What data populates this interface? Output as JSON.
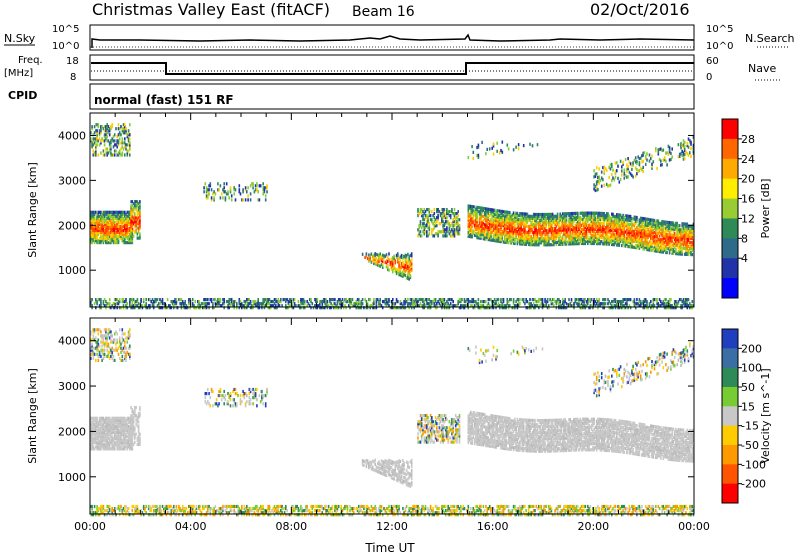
{
  "header": {
    "station": "Christmas Valley East (fitACF)",
    "beam": "Beam 16",
    "date": "02/Oct/2016"
  },
  "strip_labels": {
    "nsky": "N.Sky",
    "nsky_ticks": [
      "10^5",
      "10^0"
    ],
    "nsearch": "N.Search",
    "nsearch_ticks": [
      "10^5",
      "10^0"
    ],
    "freq": "Freq.",
    "freq_unit": "[MHz]",
    "freq_ticks": [
      "18",
      "8"
    ],
    "nave": "Nave",
    "nave_ticks": [
      "60",
      "0"
    ],
    "cpid": "CPID",
    "cpid_value": "normal (fast) 151 RF"
  },
  "chart_data": [
    {
      "type": "heatmap",
      "name": "power-panel",
      "ylabel": "Slant Range [km]",
      "yticks": [
        1000,
        2000,
        3000,
        4000
      ],
      "ylim": [
        180,
        4500
      ],
      "xlim": [
        0,
        24
      ],
      "colorbar_label": "Power [dB]",
      "colorbar_ticks": [
        "28",
        "24",
        "20",
        "16",
        "12",
        "8",
        "4"
      ],
      "colorbar_colors": [
        "#ff0000",
        "#ff6600",
        "#ffaa00",
        "#ffee00",
        "#99cc33",
        "#2e8b57",
        "#2e6b8a",
        "#2233aa",
        "#0000ff"
      ]
    },
    {
      "type": "heatmap",
      "name": "velocity-panel",
      "ylabel": "Slant Range [km]",
      "yticks": [
        1000,
        2000,
        3000,
        4000
      ],
      "ylim": [
        180,
        4500
      ],
      "xlim": [
        0,
        24
      ],
      "xlabel": "Time UT",
      "xticks": [
        "00:00",
        "04:00",
        "08:00",
        "12:00",
        "16:00",
        "20:00",
        "00:00"
      ],
      "colorbar_label": "Velocity [m s^-1]",
      "colorbar_ticks": [
        "200",
        "100",
        "50",
        "15",
        "-15",
        "-50",
        "-100",
        "-200"
      ],
      "colorbar_colors": [
        "#1f3fbf",
        "#3a6ea5",
        "#2e8b57",
        "#77cc33",
        "#c8c8c8",
        "#ffcc00",
        "#ff9900",
        "#ff5500",
        "#ff0000"
      ]
    }
  ]
}
